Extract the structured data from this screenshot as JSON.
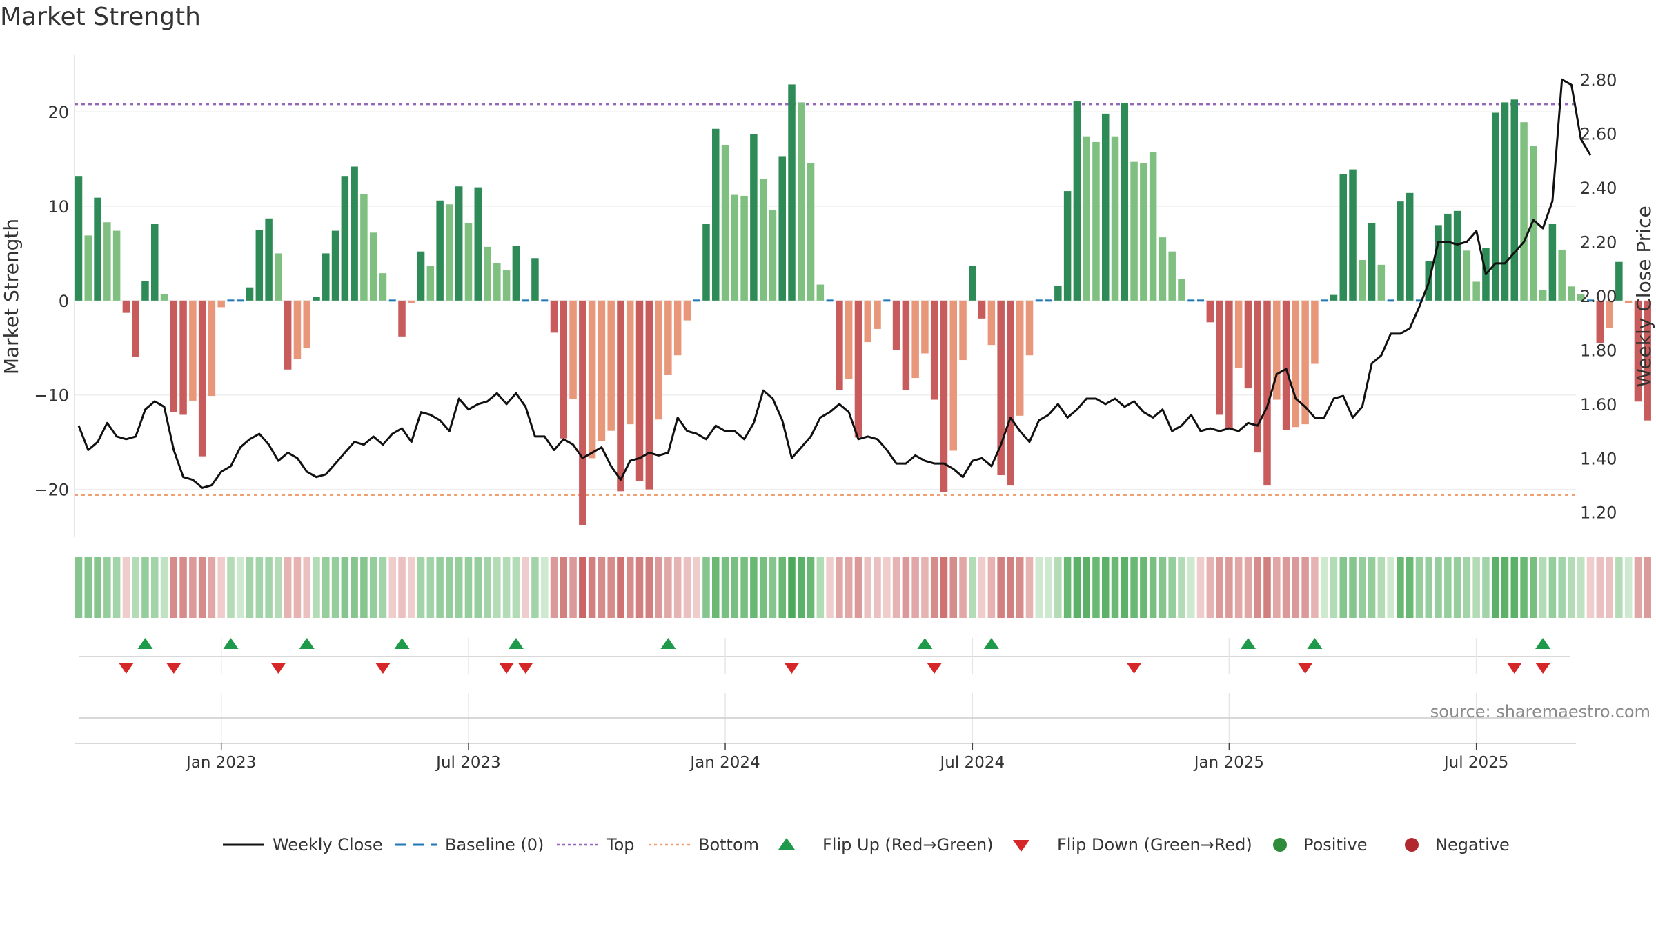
{
  "chart_data": {
    "type": "bar",
    "title": "Market Strength",
    "ylabel_left": "Market Strength",
    "ylabel_right": "Weekly Close Price",
    "ylim_left": [
      -25,
      26
    ],
    "ylim_right": [
      1.11,
      2.89
    ],
    "yticks_left": [
      {
        "v": 20,
        "label": "20"
      },
      {
        "v": 10,
        "label": "10"
      },
      {
        "v": 0,
        "label": "0"
      },
      {
        "v": -10,
        "label": "−10"
      },
      {
        "v": -20,
        "label": "−20"
      }
    ],
    "yticks_right": [
      {
        "v": 2.8,
        "label": "2.80"
      },
      {
        "v": 2.6,
        "label": "2.60"
      },
      {
        "v": 2.4,
        "label": "2.40"
      },
      {
        "v": 2.2,
        "label": "2.20"
      },
      {
        "v": 2.0,
        "label": "2.00"
      },
      {
        "v": 1.8,
        "label": "1.80"
      },
      {
        "v": 1.6,
        "label": "1.60"
      },
      {
        "v": 1.4,
        "label": "1.40"
      },
      {
        "v": 1.2,
        "label": "1.20"
      }
    ],
    "top_level": 20.8,
    "bottom_level": -20.6,
    "baseline": 0,
    "x_ticks": [
      {
        "week": 15,
        "label": "Jan 2023"
      },
      {
        "week": 41,
        "label": "Jul 2023"
      },
      {
        "week": 68,
        "label": "Jan 2024"
      },
      {
        "week": 94,
        "label": "Jul 2024"
      },
      {
        "week": 121,
        "label": "Jan 2025"
      },
      {
        "week": 147,
        "label": "Jul 2025"
      }
    ],
    "strength": [
      13.2,
      6.9,
      10.9,
      8.3,
      7.4,
      -1.3,
      -6.0,
      2.1,
      8.1,
      0.7,
      -11.8,
      -12.1,
      -10.6,
      -16.5,
      -10.1,
      -0.7,
      0,
      0,
      1.4,
      7.5,
      8.7,
      5.0,
      -7.3,
      -6.2,
      -5.0,
      0.4,
      5.0,
      7.4,
      13.2,
      14.2,
      11.3,
      7.2,
      2.9,
      0,
      -3.8,
      -0.3,
      5.2,
      3.7,
      10.6,
      10.2,
      12.1,
      8.2,
      12.0,
      5.7,
      4.0,
      3.2,
      5.8,
      0,
      4.5,
      0,
      -3.4,
      -14.6,
      -10.4,
      -23.8,
      -16.7,
      -14.9,
      -13.8,
      -20.2,
      -13.1,
      -19.1,
      -20.0,
      -12.6,
      -7.9,
      -5.8,
      -2.1,
      0,
      8.1,
      18.2,
      16.5,
      11.2,
      11.1,
      17.6,
      12.9,
      9.6,
      15.3,
      22.9,
      21.0,
      14.6,
      1.7,
      0,
      -9.5,
      -8.3,
      -14.5,
      -4.4,
      -3.0,
      0,
      -5.2,
      -9.5,
      -8.2,
      -5.6,
      -10.5,
      -20.3,
      -15.9,
      -6.3,
      3.7,
      -1.9,
      -4.7,
      -18.5,
      -19.6,
      -12.2,
      -5.8,
      0,
      0,
      1.6,
      11.6,
      21.1,
      17.4,
      16.8,
      19.8,
      17.4,
      20.9,
      14.7,
      14.6,
      15.7,
      6.7,
      5.2,
      2.3,
      0,
      0,
      -2.3,
      -12.1,
      -13.6,
      -7.1,
      -9.3,
      -16.1,
      -19.6,
      -10.5,
      -13.7,
      -13.4,
      -13.1,
      -6.7,
      0,
      0.6,
      13.4,
      13.9,
      4.3,
      8.2,
      3.8,
      0,
      10.5,
      11.4,
      0,
      4.2,
      8.0,
      9.2,
      9.5,
      5.3,
      2.0,
      5.6,
      19.9,
      21.0,
      21.3,
      18.9,
      16.4,
      1.1,
      8.1,
      5.4,
      1.5,
      0.7,
      0,
      -4.5,
      -2.9,
      4.1,
      -0.3,
      -10.7,
      -12.7
    ],
    "tone": [
      "d",
      "l",
      "d",
      "l",
      "l",
      "d",
      "d",
      "d",
      "d",
      "l",
      "d",
      "d",
      "l",
      "d",
      "l",
      "l",
      "-",
      "-",
      "d",
      "d",
      "d",
      "l",
      "d",
      "l",
      "l",
      "d",
      "d",
      "d",
      "d",
      "d",
      "l",
      "l",
      "l",
      "-",
      "d",
      "l",
      "d",
      "l",
      "d",
      "l",
      "d",
      "l",
      "d",
      "l",
      "l",
      "l",
      "d",
      "-",
      "d",
      "-",
      "d",
      "d",
      "l",
      "d",
      "l",
      "l",
      "l",
      "d",
      "l",
      "d",
      "d",
      "l",
      "l",
      "l",
      "l",
      "-",
      "d",
      "d",
      "l",
      "l",
      "l",
      "d",
      "l",
      "l",
      "d",
      "d",
      "l",
      "l",
      "l",
      "-",
      "d",
      "l",
      "d",
      "l",
      "l",
      "-",
      "d",
      "d",
      "l",
      "l",
      "d",
      "d",
      "l",
      "l",
      "d",
      "d",
      "l",
      "d",
      "d",
      "l",
      "l",
      "-",
      "-",
      "d",
      "d",
      "d",
      "l",
      "l",
      "d",
      "l",
      "d",
      "l",
      "l",
      "l",
      "l",
      "l",
      "l",
      "-",
      "-",
      "d",
      "d",
      "d",
      "l",
      "d",
      "d",
      "d",
      "l",
      "d",
      "l",
      "l",
      "l",
      "-",
      "d",
      "d",
      "d",
      "l",
      "d",
      "l",
      "-",
      "d",
      "d",
      "-",
      "d",
      "d",
      "d",
      "d",
      "l",
      "l",
      "d",
      "d",
      "d",
      "d",
      "l",
      "l",
      "l",
      "d",
      "l",
      "l",
      "l",
      "-",
      "d",
      "l",
      "d",
      "l",
      "d",
      "d"
    ],
    "weekly_close": [
      1.52,
      1.43,
      1.46,
      1.53,
      1.48,
      1.47,
      1.48,
      1.58,
      1.61,
      1.59,
      1.43,
      1.33,
      1.32,
      1.29,
      1.3,
      1.35,
      1.37,
      1.44,
      1.47,
      1.49,
      1.45,
      1.39,
      1.42,
      1.4,
      1.35,
      1.33,
      1.34,
      1.38,
      1.42,
      1.46,
      1.45,
      1.48,
      1.45,
      1.49,
      1.51,
      1.46,
      1.57,
      1.56,
      1.54,
      1.5,
      1.62,
      1.58,
      1.6,
      1.61,
      1.64,
      1.6,
      1.64,
      1.59,
      1.48,
      1.48,
      1.43,
      1.47,
      1.45,
      1.4,
      1.42,
      1.44,
      1.37,
      1.32,
      1.39,
      1.4,
      1.42,
      1.41,
      1.42,
      1.55,
      1.5,
      1.49,
      1.47,
      1.52,
      1.5,
      1.5,
      1.47,
      1.53,
      1.65,
      1.62,
      1.54,
      1.4,
      1.44,
      1.48,
      1.55,
      1.57,
      1.6,
      1.57,
      1.47,
      1.48,
      1.47,
      1.43,
      1.38,
      1.38,
      1.41,
      1.39,
      1.38,
      1.38,
      1.36,
      1.33,
      1.39,
      1.4,
      1.37,
      1.45,
      1.55,
      1.5,
      1.46,
      1.54,
      1.56,
      1.6,
      1.55,
      1.58,
      1.62,
      1.62,
      1.6,
      1.62,
      1.59,
      1.61,
      1.57,
      1.55,
      1.58,
      1.5,
      1.52,
      1.56,
      1.5,
      1.51,
      1.5,
      1.51,
      1.5,
      1.53,
      1.52,
      1.59,
      1.71,
      1.73,
      1.62,
      1.59,
      1.55,
      1.55,
      1.62,
      1.63,
      1.55,
      1.59,
      1.75,
      1.78,
      1.86,
      1.86,
      1.88,
      1.96,
      2.05,
      2.2,
      2.2,
      2.19,
      2.2,
      2.24,
      2.08,
      2.12,
      2.12,
      2.16,
      2.2,
      2.28,
      2.25,
      2.35,
      2.8,
      2.78,
      2.58,
      2.52
    ],
    "heat_strip": [
      0.6,
      0.6,
      0.6,
      0.5,
      0.4,
      -0.1,
      0.3,
      0.5,
      0.4,
      0.2,
      -0.6,
      -0.6,
      -0.5,
      -0.6,
      -0.4,
      -0.1,
      0.3,
      0.1,
      0.4,
      0.4,
      0.4,
      0.3,
      -0.3,
      -0.3,
      -0.2,
      0.3,
      0.5,
      0.5,
      0.6,
      0.6,
      0.6,
      0.5,
      0.4,
      -0.1,
      -0.2,
      -0.1,
      0.4,
      0.4,
      0.5,
      0.5,
      0.5,
      0.5,
      0.5,
      0.4,
      0.3,
      0.3,
      0.3,
      -0.1,
      0.4,
      0.1,
      -0.5,
      -0.7,
      -0.5,
      -0.9,
      -0.7,
      -0.6,
      -0.6,
      -0.8,
      -0.6,
      -0.7,
      -0.7,
      -0.5,
      -0.4,
      -0.3,
      -0.2,
      -0.1,
      0.6,
      0.8,
      0.7,
      0.7,
      0.7,
      0.8,
      0.7,
      0.6,
      0.8,
      1.0,
      0.9,
      0.8,
      0.3,
      -0.1,
      -0.4,
      -0.4,
      -0.5,
      -0.2,
      -0.2,
      -0.1,
      -0.3,
      -0.5,
      -0.4,
      -0.3,
      -0.6,
      -0.8,
      -0.6,
      -0.4,
      0.3,
      -0.1,
      -0.3,
      -0.7,
      -0.7,
      -0.6,
      -0.3,
      0.1,
      0.1,
      0.3,
      0.8,
      0.9,
      0.9,
      0.8,
      0.9,
      0.8,
      0.9,
      0.8,
      0.8,
      0.7,
      0.6,
      0.5,
      0.3,
      0.1,
      -0.1,
      -0.3,
      -0.5,
      -0.5,
      -0.4,
      -0.4,
      -0.6,
      -0.7,
      -0.4,
      -0.5,
      -0.5,
      -0.5,
      -0.3,
      0.1,
      0.3,
      0.6,
      0.6,
      0.5,
      0.5,
      0.3,
      0.1,
      0.8,
      0.8,
      0.5,
      0.5,
      0.5,
      0.5,
      0.5,
      0.4,
      0.3,
      0.4,
      0.9,
      0.9,
      0.9,
      0.8,
      0.7,
      0.3,
      0.5,
      0.4,
      0.3,
      0.2,
      -0.1,
      -0.2,
      -0.2,
      0.3,
      0.1,
      -0.4,
      -0.5
    ],
    "flip_up_weeks": [
      7,
      16,
      24,
      34,
      46,
      62,
      89,
      96,
      123,
      130,
      154
    ],
    "flip_down_weeks": [
      5,
      10,
      21,
      32,
      45,
      47,
      75,
      90,
      111,
      129,
      151,
      154
    ],
    "positive_color": "#2e8b3a",
    "negative_color": "#b0282e",
    "legend": [
      {
        "key": "weekly_close",
        "label": "Weekly Close",
        "color": "#111111"
      },
      {
        "key": "baseline",
        "label": "Baseline (0)",
        "color": "#1f77b4"
      },
      {
        "key": "top",
        "label": "Top",
        "color": "#9467bd"
      },
      {
        "key": "bottom",
        "label": "Bottom",
        "color": "#f0a070"
      },
      {
        "key": "flip_up",
        "label": "Flip Up (Red→Green)",
        "color": "#1f9a4a"
      },
      {
        "key": "flip_down",
        "label": "Flip Down (Green→Red)",
        "color": "#d62728"
      },
      {
        "key": "positive",
        "label": "Positive",
        "color": "#2e8b3a"
      },
      {
        "key": "negative",
        "label": "Negative",
        "color": "#b0282e"
      }
    ],
    "source_note": "source: sharemaestro.com"
  }
}
